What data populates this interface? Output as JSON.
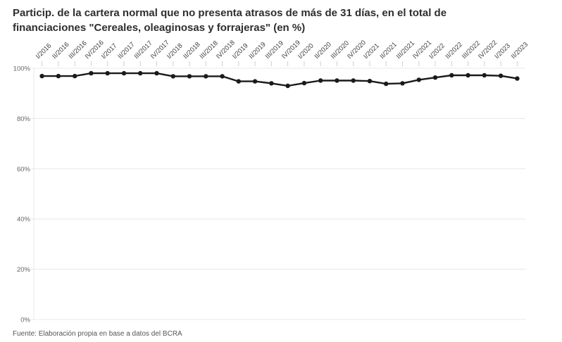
{
  "title": "Particip. de la cartera normal que no presenta atrasos de más de 31 días, en el total de financiaciones \"Cereales, oleaginosas y forrajeras\" (en %)",
  "source_note": "Fuente: Elaboración propia en base a datos del BCRA",
  "chart_data": {
    "type": "line",
    "title": "Particip. de la cartera normal que no presenta atrasos de más de 31 días, en el total de financiaciones \"Cereales, oleaginosas y forrajeras\" (en %)",
    "categories": [
      "I/2016",
      "II/2016",
      "III/2016",
      "IV/2016",
      "I/2017",
      "II/2017",
      "III/2017",
      "IV/2017",
      "I/2018",
      "II/2018",
      "III/2018",
      "IV/2018",
      "I/2019",
      "II/2019",
      "III/2019",
      "IV/2019",
      "I/2020",
      "II/2020",
      "III/2020",
      "IV/2020",
      "I/2021",
      "II/2021",
      "III/2021",
      "IV/2021",
      "I/2022",
      "II/2022",
      "III/2022",
      "IV/2022",
      "I/2023",
      "II/2023"
    ],
    "values": [
      96.9,
      96.9,
      96.9,
      98.0,
      98.0,
      98.0,
      98.0,
      98.0,
      96.8,
      96.8,
      96.8,
      96.8,
      94.8,
      94.8,
      94.0,
      93.0,
      94.1,
      95.1,
      95.1,
      95.1,
      94.9,
      93.8,
      94.0,
      95.4,
      96.3,
      97.2,
      97.2,
      97.2,
      97.0,
      95.9
    ],
    "xlabel": "",
    "ylabel": "",
    "ylim": [
      0,
      100
    ],
    "yticks": [
      "0%",
      "20%",
      "40%",
      "60%",
      "80%",
      "100%"
    ],
    "grid": true,
    "legend": false,
    "x_labels_position": "top",
    "x_labels_rotation": -45,
    "marker": "circle",
    "line_color": "#1a1a1a",
    "grid_color": "#e8e8e8",
    "tick_color": "#cfcfcf",
    "x_label_color": "#404040",
    "y_label_color": "#666666"
  }
}
